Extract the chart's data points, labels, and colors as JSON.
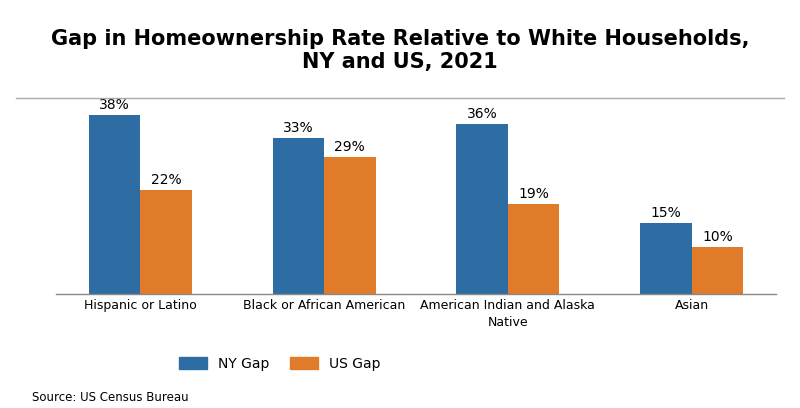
{
  "title": "Gap in Homeownership Rate Relative to White Households,\nNY and US, 2021",
  "categories": [
    "Hispanic or Latino",
    "Black or African American",
    "American Indian and Alaska\nNative",
    "Asian"
  ],
  "ny_values": [
    38,
    33,
    36,
    15
  ],
  "us_values": [
    22,
    29,
    19,
    10
  ],
  "ny_color": "#2E6DA4",
  "us_color": "#E07B2A",
  "legend_labels": [
    "NY Gap",
    "US Gap"
  ],
  "source": "Source: US Census Bureau",
  "bar_width": 0.28,
  "ylim": [
    0,
    45
  ],
  "title_fontsize": 15,
  "label_fontsize": 10,
  "tick_fontsize": 9,
  "source_fontsize": 8.5,
  "legend_fontsize": 10
}
